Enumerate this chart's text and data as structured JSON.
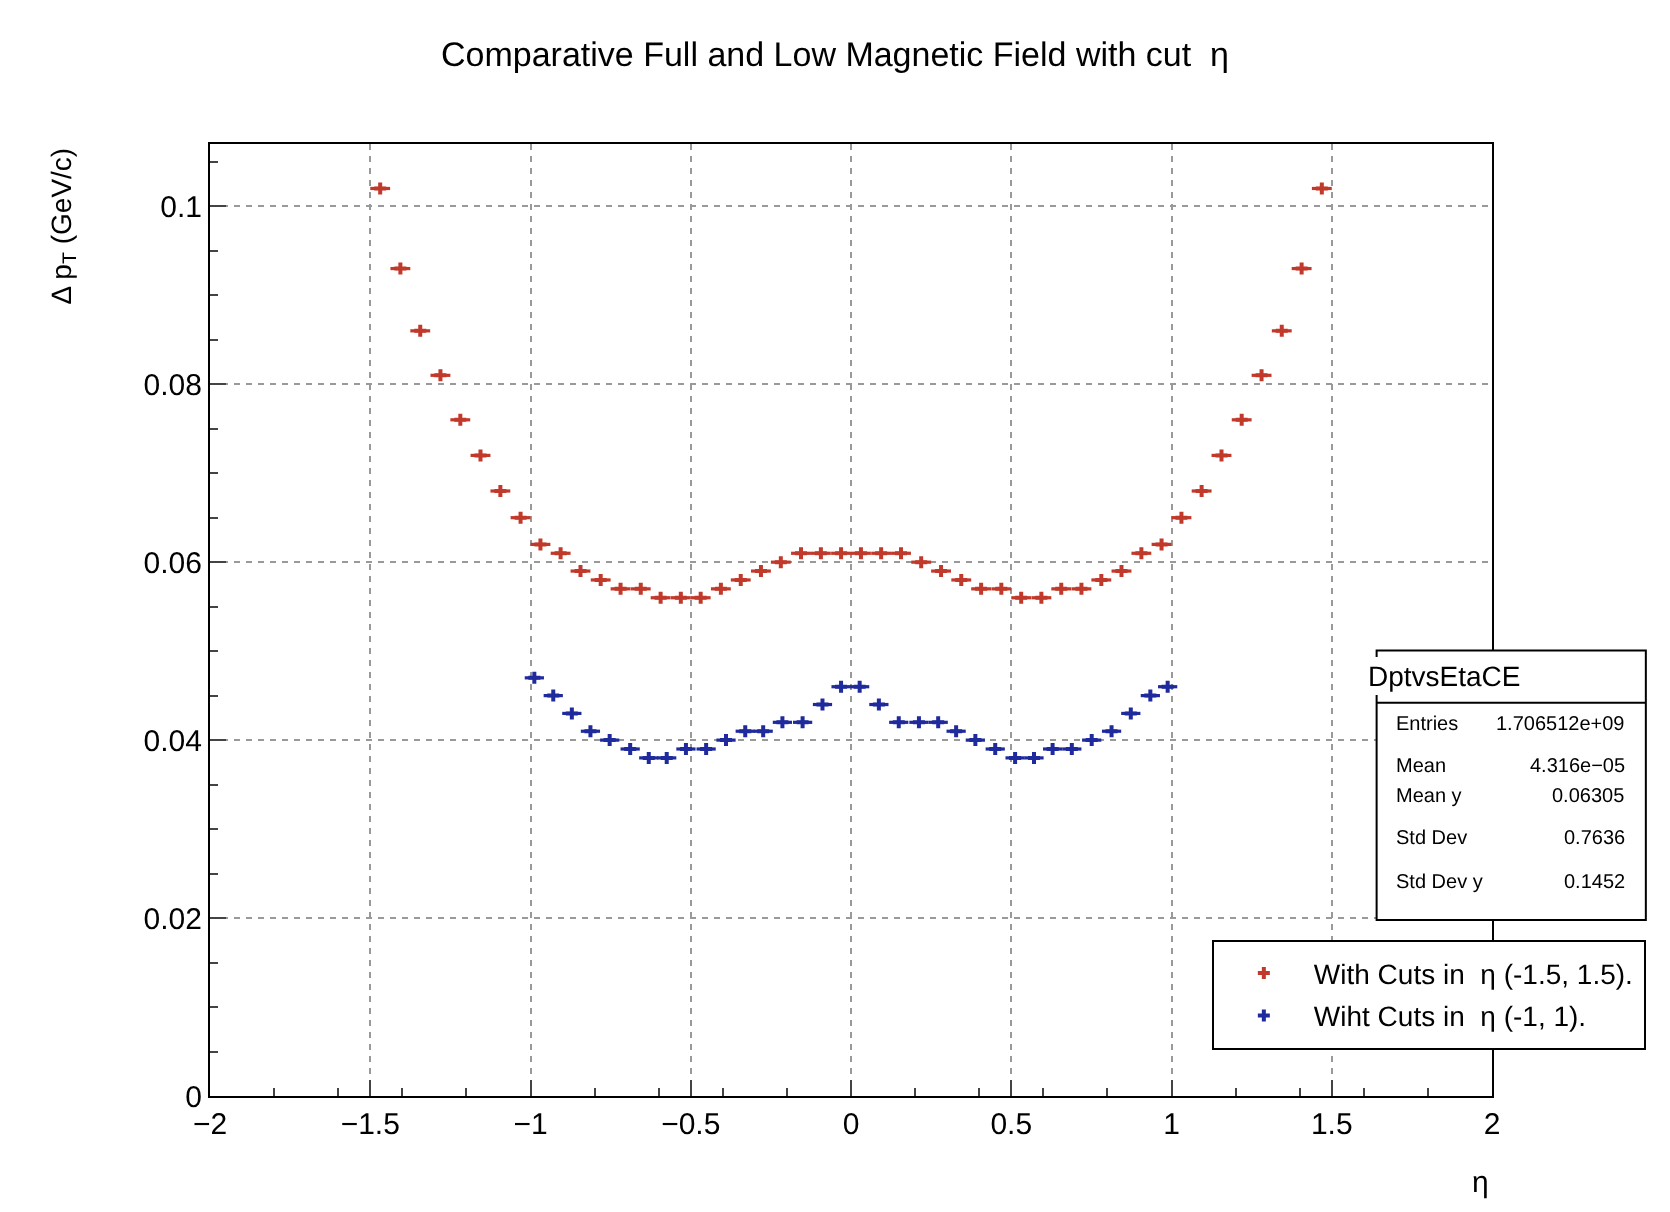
{
  "chart_data": {
    "type": "scatter",
    "title": "Comparative Full and Low Magnetic Field with cut  η",
    "xlabel": "η",
    "ylabel": "Δ p$_{T}$ (GeV/c)",
    "xlim": [
      -2,
      2
    ],
    "ylim": [
      0,
      0.107
    ],
    "xticks": [
      {
        "value": -2,
        "label": "−2"
      },
      {
        "value": -1.5,
        "label": "−1.5"
      },
      {
        "value": -1,
        "label": "−1"
      },
      {
        "value": -0.5,
        "label": "−0.5"
      },
      0,
      0.5,
      1,
      1.5,
      2
    ],
    "yticks": [
      0,
      0.02,
      0.04,
      0.06,
      0.08,
      0.1
    ],
    "grid": true,
    "legend": "bottom right",
    "marker": "cross",
    "annotations": [
      "DptvsEtaCE",
      "Entries",
      "1.706512e+09",
      "Mean",
      "4.316e−05",
      "Mean y",
      "0.06305",
      "Std Dev",
      "0.7636",
      "Std Dev y",
      "0.1452"
    ],
    "series": [
      {
        "name": "With Cuts in  η (-1.5, 1.5).",
        "color": "#c0392b",
        "x": [
          -1.469,
          -1.406,
          -1.344,
          -1.281,
          -1.219,
          -1.156,
          -1.094,
          -1.031,
          -0.969,
          -0.906,
          -0.844,
          -0.781,
          -0.719,
          -0.656,
          -0.594,
          -0.531,
          -0.469,
          -0.406,
          -0.344,
          -0.281,
          -0.219,
          -0.156,
          -0.094,
          -0.031,
          0.031,
          0.094,
          0.156,
          0.219,
          0.281,
          0.344,
          0.406,
          0.469,
          0.531,
          0.594,
          0.656,
          0.719,
          0.781,
          0.844,
          0.906,
          0.969,
          1.031,
          1.094,
          1.156,
          1.219,
          1.281,
          1.344,
          1.406,
          1.469
        ],
        "values": [
          0.102,
          0.093,
          0.086,
          0.081,
          0.076,
          0.072,
          0.068,
          0.065,
          0.062,
          0.061,
          0.059,
          0.058,
          0.057,
          0.057,
          0.056,
          0.056,
          0.056,
          0.057,
          0.058,
          0.059,
          0.06,
          0.061,
          0.061,
          0.061,
          0.061,
          0.061,
          0.061,
          0.06,
          0.059,
          0.058,
          0.057,
          0.057,
          0.056,
          0.056,
          0.057,
          0.057,
          0.058,
          0.059,
          0.061,
          0.062,
          0.065,
          0.068,
          0.072,
          0.076,
          0.081,
          0.086,
          0.093,
          0.102
        ],
        "xerrors": [
          0.031,
          0.031,
          0.031,
          0.031,
          0.031,
          0.031,
          0.031,
          0.031,
          0.031,
          0.031,
          0.031,
          0.031,
          0.031,
          0.031,
          0.031,
          0.031,
          0.031,
          0.031,
          0.031,
          0.031,
          0.031,
          0.031,
          0.031,
          0.031,
          0.031,
          0.031,
          0.031,
          0.031,
          0.031,
          0.031,
          0.031,
          0.031,
          0.031,
          0.031,
          0.031,
          0.031,
          0.031,
          0.031,
          0.031,
          0.031,
          0.031,
          0.031,
          0.031,
          0.031,
          0.031,
          0.031,
          0.031,
          0.031
        ]
      },
      {
        "name": "Wiht Cuts in  η (-1, 1).",
        "color": "#1f2a9c",
        "x": [
          -0.988,
          -0.929,
          -0.871,
          -0.813,
          -0.753,
          -0.689,
          -0.631,
          -0.575,
          -0.515,
          -0.452,
          -0.39,
          -0.33,
          -0.274,
          -0.214,
          -0.151,
          -0.089,
          -0.031,
          0.027,
          0.087,
          0.149,
          0.212,
          0.272,
          0.328,
          0.388,
          0.45,
          0.512,
          0.571,
          0.629,
          0.689,
          0.751,
          0.813,
          0.873,
          0.934,
          0.988
        ],
        "values": [
          0.047,
          0.045,
          0.043,
          0.041,
          0.04,
          0.039,
          0.038,
          0.038,
          0.039,
          0.039,
          0.04,
          0.041,
          0.041,
          0.042,
          0.042,
          0.044,
          0.046,
          0.046,
          0.044,
          0.042,
          0.042,
          0.042,
          0.041,
          0.04,
          0.039,
          0.038,
          0.038,
          0.039,
          0.039,
          0.04,
          0.041,
          0.043,
          0.045,
          0.046
        ],
        "xerrors": [
          0.03,
          0.03,
          0.03,
          0.03,
          0.03,
          0.03,
          0.03,
          0.03,
          0.03,
          0.03,
          0.03,
          0.03,
          0.03,
          0.03,
          0.03,
          0.03,
          0.03,
          0.03,
          0.03,
          0.03,
          0.03,
          0.03,
          0.03,
          0.03,
          0.03,
          0.03,
          0.03,
          0.03,
          0.03,
          0.03,
          0.03,
          0.03,
          0.03,
          0.03
        ]
      }
    ]
  }
}
